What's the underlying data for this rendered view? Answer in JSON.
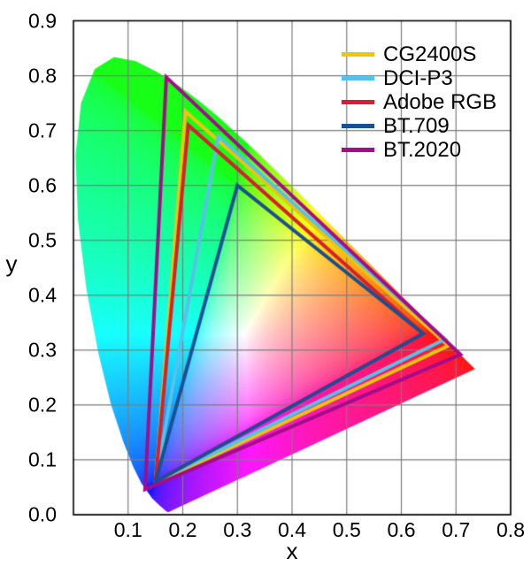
{
  "chart_data": {
    "type": "line",
    "subtype": "CIE 1931 xy chromaticity diagram with color gamut triangles",
    "xlabel": "x",
    "ylabel": "y",
    "xlim": [
      0,
      0.8
    ],
    "ylim": [
      0,
      0.9
    ],
    "xticks": [
      "0.1",
      "0.2",
      "0.3",
      "0.4",
      "0.5",
      "0.6",
      "0.7",
      "0.8"
    ],
    "yticks": [
      "0.0",
      "0.1",
      "0.2",
      "0.3",
      "0.4",
      "0.5",
      "0.6",
      "0.7",
      "0.8",
      "0.9"
    ],
    "grid": true,
    "grid_color": "#7d7d7d",
    "legend_position": "top-right",
    "series": [
      {
        "name": "CG2400S",
        "color": "#ecc50e",
        "points": [
          [
            0.686,
            0.308
          ],
          [
            0.205,
            0.735
          ],
          [
            0.15,
            0.058
          ]
        ]
      },
      {
        "name": "DCI-P3",
        "color": "#56c2ea",
        "points": [
          [
            0.68,
            0.32
          ],
          [
            0.265,
            0.69
          ],
          [
            0.15,
            0.06
          ]
        ]
      },
      {
        "name": "Adobe RGB",
        "color": "#d6202d",
        "points": [
          [
            0.64,
            0.33
          ],
          [
            0.21,
            0.71
          ],
          [
            0.15,
            0.06
          ]
        ]
      },
      {
        "name": "BT.709",
        "color": "#1c4e94",
        "points": [
          [
            0.64,
            0.33
          ],
          [
            0.3,
            0.6
          ],
          [
            0.15,
            0.06
          ]
        ]
      },
      {
        "name": "BT.2020",
        "color": "#a60b8a",
        "points": [
          [
            0.708,
            0.292
          ],
          [
            0.17,
            0.797
          ],
          [
            0.131,
            0.046
          ]
        ]
      }
    ],
    "spectral_locus": [
      [
        0.1741,
        0.005
      ],
      [
        0.1726,
        0.0048
      ],
      [
        0.1714,
        0.0051
      ],
      [
        0.1689,
        0.0069
      ],
      [
        0.1644,
        0.0109
      ],
      [
        0.1566,
        0.0177
      ],
      [
        0.144,
        0.0297
      ],
      [
        0.1241,
        0.0578
      ],
      [
        0.1096,
        0.0868
      ],
      [
        0.0913,
        0.1327
      ],
      [
        0.0687,
        0.2007
      ],
      [
        0.0454,
        0.295
      ],
      [
        0.0235,
        0.4127
      ],
      [
        0.0082,
        0.5384
      ],
      [
        0.0039,
        0.6548
      ],
      [
        0.0139,
        0.7502
      ],
      [
        0.0389,
        0.812
      ],
      [
        0.0743,
        0.8338
      ],
      [
        0.1142,
        0.8262
      ],
      [
        0.1547,
        0.8059
      ],
      [
        0.1929,
        0.7816
      ],
      [
        0.2296,
        0.7543
      ],
      [
        0.2658,
        0.7243
      ],
      [
        0.3016,
        0.6923
      ],
      [
        0.3373,
        0.6589
      ],
      [
        0.3731,
        0.6245
      ],
      [
        0.4087,
        0.5896
      ],
      [
        0.4441,
        0.5547
      ],
      [
        0.4788,
        0.5202
      ],
      [
        0.5125,
        0.4866
      ],
      [
        0.5448,
        0.4544
      ],
      [
        0.5752,
        0.4242
      ],
      [
        0.6029,
        0.3965
      ],
      [
        0.627,
        0.3725
      ],
      [
        0.6482,
        0.3514
      ],
      [
        0.6658,
        0.334
      ],
      [
        0.6915,
        0.3083
      ],
      [
        0.7079,
        0.292
      ],
      [
        0.719,
        0.2809
      ],
      [
        0.726,
        0.274
      ],
      [
        0.7347,
        0.2653
      ]
    ]
  }
}
